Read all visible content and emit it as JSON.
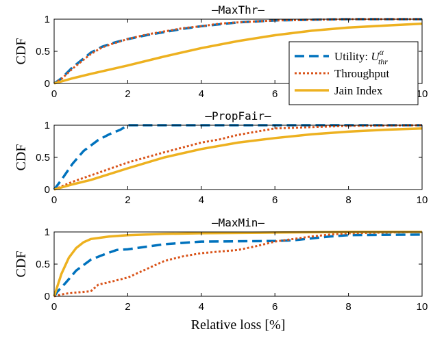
{
  "chart_data": [
    {
      "type": "line",
      "title": "—MaxThr—",
      "ylabel": "CDF",
      "xlabel": "",
      "xlim": [
        0,
        10
      ],
      "ylim": [
        0,
        1
      ],
      "xticks": [
        0,
        2,
        4,
        6,
        8,
        10
      ],
      "xtick_labels": [
        "0",
        "2",
        "4",
        "6",
        "",
        "10"
      ],
      "yticks": [
        0,
        0.5,
        1
      ],
      "ytick_labels": [
        "0",
        "0.5",
        "1"
      ],
      "legend_position": "bottom-right",
      "series": [
        {
          "name": "Utility: Uαthr",
          "style": "dashed",
          "color": "#0072BD",
          "points": [
            [
              0,
              0
            ],
            [
              0.2,
              0.08
            ],
            [
              0.5,
              0.25
            ],
            [
              1.0,
              0.48
            ],
            [
              1.3,
              0.57
            ],
            [
              1.6,
              0.63
            ],
            [
              2,
              0.69
            ],
            [
              2.5,
              0.75
            ],
            [
              3,
              0.8
            ],
            [
              3.5,
              0.85
            ],
            [
              4,
              0.89
            ],
            [
              4.5,
              0.92
            ],
            [
              5,
              0.95
            ],
            [
              6,
              0.98
            ],
            [
              7,
              0.99
            ],
            [
              8,
              1.0
            ],
            [
              10,
              1.0
            ]
          ]
        },
        {
          "name": "Throughput",
          "style": "dotted",
          "color": "#D95319",
          "points": [
            [
              0,
              0
            ],
            [
              0.2,
              0.07
            ],
            [
              0.5,
              0.23
            ],
            [
              1.0,
              0.46
            ],
            [
              1.3,
              0.56
            ],
            [
              1.6,
              0.62
            ],
            [
              2,
              0.69
            ],
            [
              2.5,
              0.76
            ],
            [
              3,
              0.81
            ],
            [
              3.5,
              0.86
            ],
            [
              4,
              0.89
            ],
            [
              4.5,
              0.93
            ],
            [
              5,
              0.95
            ],
            [
              6,
              0.98
            ],
            [
              7,
              0.99
            ],
            [
              8,
              1.0
            ],
            [
              10,
              1.0
            ]
          ]
        },
        {
          "name": "Jain Index",
          "style": "solid",
          "color": "#EDB120",
          "points": [
            [
              0,
              0
            ],
            [
              0.5,
              0.08
            ],
            [
              1,
              0.15
            ],
            [
              2,
              0.28
            ],
            [
              3,
              0.42
            ],
            [
              4,
              0.55
            ],
            [
              5,
              0.66
            ],
            [
              6,
              0.75
            ],
            [
              7,
              0.82
            ],
            [
              8,
              0.87
            ],
            [
              9,
              0.9
            ],
            [
              10,
              0.93
            ]
          ]
        }
      ],
      "legend": {
        "utility_prefix": "Utility: ",
        "utility_symbol": "U",
        "utility_sup": "α",
        "utility_sub": "thr",
        "throughput": "Throughput",
        "jain": "Jain Index"
      }
    },
    {
      "type": "line",
      "title": "—PropFair—",
      "ylabel": "CDF",
      "xlabel": "",
      "xlim": [
        0,
        10
      ],
      "ylim": [
        0,
        1
      ],
      "xticks": [
        0,
        2,
        4,
        6,
        8,
        10
      ],
      "xtick_labels": [
        "0",
        "2",
        "4",
        "6",
        "8",
        "10"
      ],
      "yticks": [
        0,
        0.5,
        1
      ],
      "ytick_labels": [
        "0",
        "0.5",
        "1"
      ],
      "series": [
        {
          "name": "Utility: Uαthr",
          "style": "dashed",
          "color": "#0072BD",
          "points": [
            [
              0,
              0
            ],
            [
              0.2,
              0.15
            ],
            [
              0.5,
              0.4
            ],
            [
              0.8,
              0.6
            ],
            [
              1.2,
              0.77
            ],
            [
              1.5,
              0.86
            ],
            [
              1.8,
              0.93
            ],
            [
              2,
              1.0
            ],
            [
              10,
              1.0
            ]
          ]
        },
        {
          "name": "Throughput",
          "style": "dotted",
          "color": "#D95319",
          "points": [
            [
              0,
              0
            ],
            [
              0.5,
              0.12
            ],
            [
              1,
              0.22
            ],
            [
              2,
              0.42
            ],
            [
              3,
              0.58
            ],
            [
              4,
              0.73
            ],
            [
              4.5,
              0.78
            ],
            [
              5,
              0.85
            ],
            [
              5.5,
              0.9
            ],
            [
              6,
              0.95
            ],
            [
              7,
              0.97
            ],
            [
              8,
              0.99
            ],
            [
              10,
              1.0
            ]
          ]
        },
        {
          "name": "Jain Index",
          "style": "solid",
          "color": "#EDB120",
          "points": [
            [
              0,
              0
            ],
            [
              0.5,
              0.08
            ],
            [
              1,
              0.15
            ],
            [
              2,
              0.33
            ],
            [
              3,
              0.5
            ],
            [
              4,
              0.63
            ],
            [
              5,
              0.73
            ],
            [
              6,
              0.8
            ],
            [
              7,
              0.86
            ],
            [
              8,
              0.9
            ],
            [
              9,
              0.93
            ],
            [
              10,
              0.95
            ]
          ]
        }
      ]
    },
    {
      "type": "line",
      "title": "—MaxMin—",
      "ylabel": "CDF",
      "xlabel": "Relative loss [%]",
      "xlim": [
        0,
        10
      ],
      "ylim": [
        0,
        1
      ],
      "xticks": [
        0,
        2,
        4,
        6,
        8,
        10
      ],
      "xtick_labels": [
        "0",
        "2",
        "4",
        "6",
        "8",
        "10"
      ],
      "yticks": [
        0,
        0.5,
        1
      ],
      "ytick_labels": [
        "0",
        "0.5",
        "1"
      ],
      "series": [
        {
          "name": "Utility: Uαthr",
          "style": "dashed",
          "color": "#0072BD",
          "points": [
            [
              0,
              0
            ],
            [
              0.1,
              0.08
            ],
            [
              0.3,
              0.2
            ],
            [
              0.6,
              0.4
            ],
            [
              1.0,
              0.57
            ],
            [
              1.4,
              0.66
            ],
            [
              1.7,
              0.72
            ],
            [
              2,
              0.73
            ],
            [
              2.5,
              0.77
            ],
            [
              3,
              0.81
            ],
            [
              3.5,
              0.83
            ],
            [
              4,
              0.85
            ],
            [
              6,
              0.86
            ],
            [
              6.5,
              0.87
            ],
            [
              7,
              0.9
            ],
            [
              7.5,
              0.93
            ],
            [
              8,
              0.95
            ],
            [
              10,
              0.96
            ]
          ]
        },
        {
          "name": "Throughput",
          "style": "dotted",
          "color": "#D95319",
          "points": [
            [
              0,
              0
            ],
            [
              0.3,
              0.04
            ],
            [
              1,
              0.08
            ],
            [
              1.2,
              0.18
            ],
            [
              1.5,
              0.22
            ],
            [
              2,
              0.29
            ],
            [
              2.5,
              0.42
            ],
            [
              3,
              0.55
            ],
            [
              3.5,
              0.62
            ],
            [
              4,
              0.67
            ],
            [
              5,
              0.72
            ],
            [
              5.5,
              0.78
            ],
            [
              6,
              0.85
            ],
            [
              6.5,
              0.89
            ],
            [
              7,
              0.93
            ],
            [
              7.5,
              0.96
            ],
            [
              8,
              0.98
            ],
            [
              10,
              1.0
            ]
          ]
        },
        {
          "name": "Jain Index",
          "style": "solid",
          "color": "#EDB120",
          "points": [
            [
              0,
              0
            ],
            [
              0.2,
              0.35
            ],
            [
              0.4,
              0.6
            ],
            [
              0.6,
              0.75
            ],
            [
              0.8,
              0.84
            ],
            [
              1,
              0.89
            ],
            [
              1.5,
              0.93
            ],
            [
              2,
              0.95
            ],
            [
              3,
              0.97
            ],
            [
              4,
              0.98
            ],
            [
              6,
              0.99
            ],
            [
              8,
              1.0
            ],
            [
              10,
              1.0
            ]
          ]
        }
      ]
    }
  ]
}
